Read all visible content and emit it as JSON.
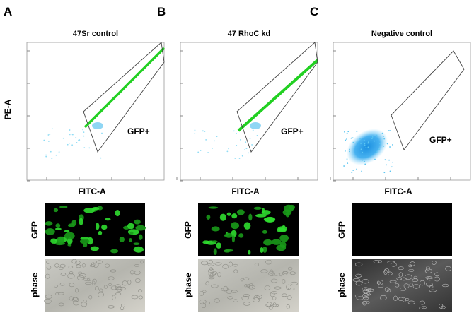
{
  "y_label": "PE-A",
  "panels": [
    {
      "letter": "A",
      "title": "47Sr control",
      "gate": "GFP+",
      "x_label": "FITC-A",
      "images": [
        {
          "label": "GFP"
        },
        {
          "label": "phase"
        }
      ]
    },
    {
      "letter": "B",
      "title": "47 RhoC kd",
      "gate": "GFP+",
      "x_label": "FITC-A",
      "images": [
        {
          "label": "GFP"
        },
        {
          "label": "phase"
        }
      ]
    },
    {
      "letter": "C",
      "title": "Negative control",
      "gate": "GFP+",
      "x_label": "FITC-A",
      "images": [
        {
          "label": "GFP"
        },
        {
          "label": "phase"
        }
      ]
    }
  ]
}
